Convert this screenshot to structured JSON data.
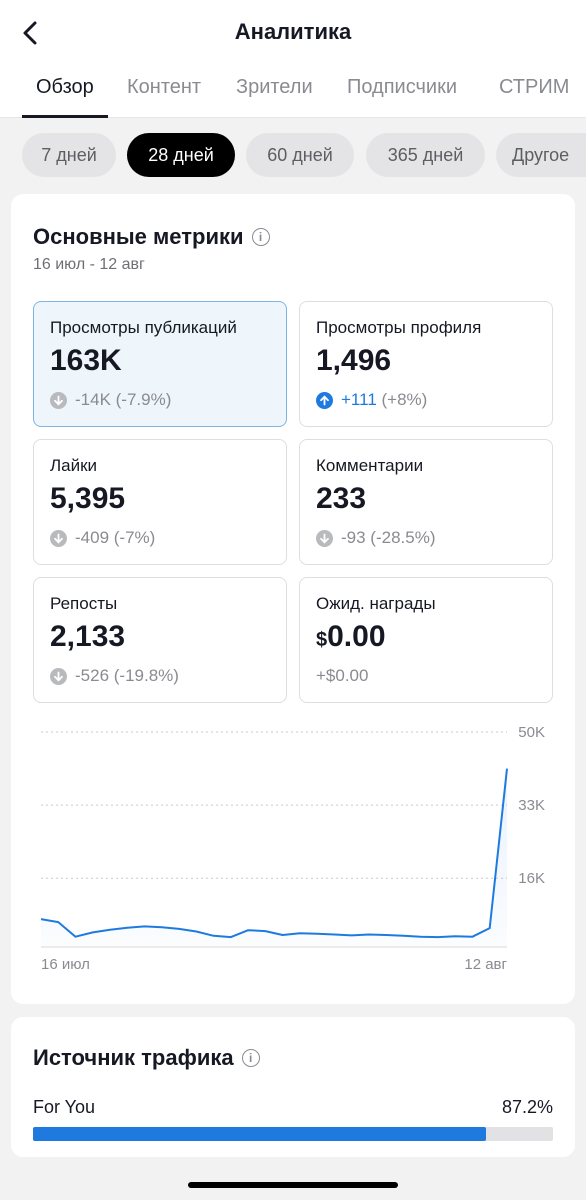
{
  "header": {
    "title": "Аналитика",
    "tabs": [
      "Обзор",
      "Контент",
      "Зрители",
      "Подписчики",
      "СТРИМ"
    ],
    "active_tab": 0
  },
  "periods": {
    "chips": [
      "7 дней",
      "28 дней",
      "60 дней",
      "365 дней",
      "Другое"
    ],
    "active": 1
  },
  "metrics_section": {
    "title": "Основные метрики",
    "date_range": "16 июл - 12 авг",
    "cards": [
      {
        "label": "Просмотры публикаций",
        "value": "163K",
        "delta": "-14K (-7.9%)",
        "direction": "down",
        "selected": true
      },
      {
        "label": "Просмотры профиля",
        "value": "1,496",
        "delta_num": "+111",
        "delta_pct": "(+8%)",
        "direction": "up",
        "selected": false
      },
      {
        "label": "Лайки",
        "value": "5,395",
        "delta": "-409 (-7%)",
        "direction": "down"
      },
      {
        "label": "Комментарии",
        "value": "233",
        "delta": "-93 (-28.5%)",
        "direction": "down"
      },
      {
        "label": "Репосты",
        "value": "2,133",
        "delta": "-526 (-19.8%)",
        "direction": "down"
      },
      {
        "label": "Ожид. награды",
        "currency": "$",
        "value": "0.00",
        "delta": "+$0.00",
        "direction": "none"
      }
    ]
  },
  "chart_data": {
    "type": "area",
    "x_start_label": "16 июл",
    "x_end_label": "12 авг",
    "y_ticks": [
      "50K",
      "33K",
      "16K"
    ],
    "y_tick_values": [
      50000,
      33000,
      16000
    ],
    "ylim": [
      0,
      50000
    ],
    "grid": true,
    "values": [
      6500,
      5800,
      2400,
      3400,
      4000,
      4500,
      4800,
      4600,
      4200,
      3600,
      2600,
      2300,
      3900,
      3700,
      2800,
      3200,
      3100,
      2900,
      2700,
      2900,
      2800,
      2600,
      2400,
      2300,
      2500,
      2400,
      4400,
      41500
    ],
    "color": "#1f7ae0"
  },
  "traffic_section": {
    "title": "Источник трафика",
    "items": [
      {
        "label": "For You",
        "percent_text": "87.2%",
        "fraction": 0.872
      }
    ]
  },
  "colors": {
    "accent": "#1f7ae0",
    "text": "#161823",
    "muted": "#8a8b91"
  }
}
